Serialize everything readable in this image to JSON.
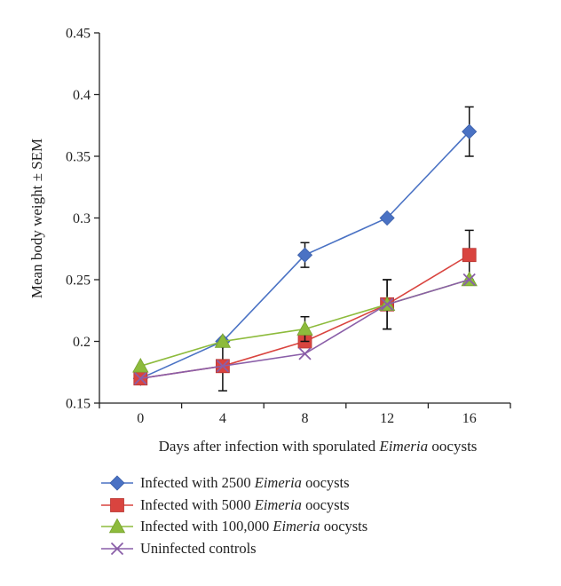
{
  "chart_data": {
    "type": "line",
    "title": "",
    "xlabel_prefix": "Days after infection with sporulated ",
    "xlabel_italic": "Eimeria",
    "xlabel_suffix": " oocysts",
    "ylabel": "Mean body weight ± SEM",
    "x": [
      0,
      4,
      8,
      12,
      16
    ],
    "xlim": [
      -2,
      18
    ],
    "ylim": [
      0.15,
      0.45
    ],
    "yticks": [
      0.15,
      0.2,
      0.25,
      0.3,
      0.35,
      0.4,
      0.45
    ],
    "ytick_labels": [
      "0.15",
      "0.2",
      "0.25",
      "0.3",
      "0.35",
      "0.4",
      "0.45"
    ],
    "xtick_labels": [
      "0",
      "4",
      "8",
      "12",
      "16"
    ],
    "grid": false,
    "legend_position": "bottom",
    "series": [
      {
        "name_prefix": "Infected with 2500 ",
        "name_italic": "Eimeria",
        "name_suffix": " oocysts",
        "color": "#4a72c4",
        "marker": "diamond",
        "values": [
          0.17,
          0.2,
          0.27,
          0.3,
          0.37
        ],
        "error": [
          0,
          0,
          0.01,
          0,
          0.02
        ]
      },
      {
        "name_prefix": "Infected with 5000 ",
        "name_italic": "Eimeria",
        "name_suffix": " oocysts",
        "color": "#d9443f",
        "marker": "square",
        "values": [
          0.17,
          0.18,
          0.2,
          0.23,
          0.27
        ],
        "error": [
          0,
          0.02,
          0,
          0.02,
          0.02
        ]
      },
      {
        "name_prefix": "Infected with 100,000 ",
        "name_italic": "Eimeria",
        "name_suffix": " oocysts",
        "color": "#8dbb3c",
        "marker": "triangle",
        "values": [
          0.18,
          0.2,
          0.21,
          0.23,
          0.25
        ],
        "error": [
          0,
          0,
          0.01,
          0.02,
          0
        ]
      },
      {
        "name_prefix": "Uninfected controls",
        "name_italic": "",
        "name_suffix": "",
        "color": "#8a5ea8",
        "marker": "x",
        "values": [
          0.17,
          0.18,
          0.19,
          0.23,
          0.25
        ],
        "error": [
          0,
          0,
          0,
          0,
          0
        ]
      }
    ]
  }
}
